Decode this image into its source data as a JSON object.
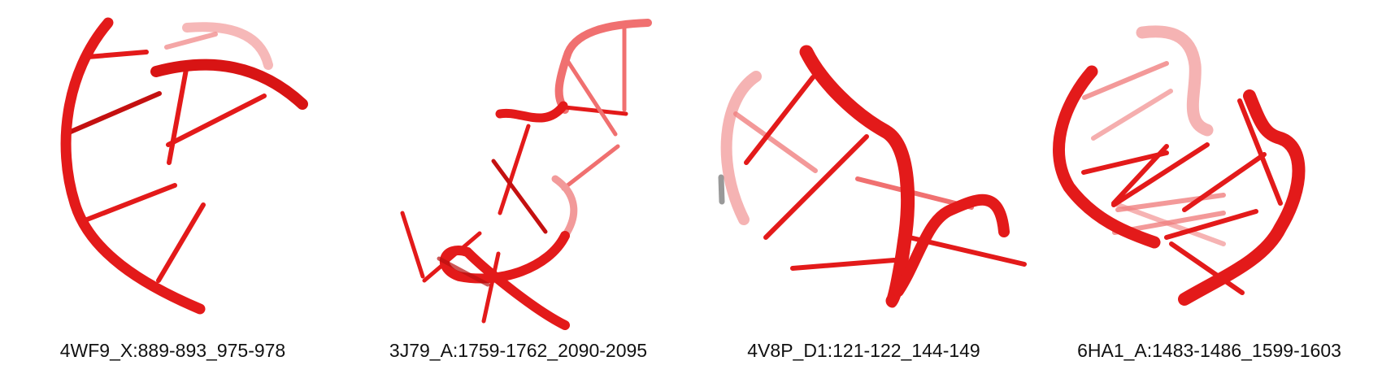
{
  "colors": {
    "strand": "#e31a1a",
    "strand_dark": "#b80f0f",
    "strand_light": "#f07070",
    "caption_text": "#111111",
    "background": "#ffffff"
  },
  "panels": [
    {
      "label": "4WF9_X:889-893_975-978",
      "icon": "rna-3d-structure-icon"
    },
    {
      "label": "3J79_A:1759-1762_2090-2095",
      "icon": "rna-3d-structure-icon"
    },
    {
      "label": "4V8P_D1:121-122_144-149",
      "icon": "rna-3d-structure-icon"
    },
    {
      "label": "6HA1_A:1483-1486_1599-1603",
      "icon": "rna-3d-structure-icon"
    }
  ]
}
